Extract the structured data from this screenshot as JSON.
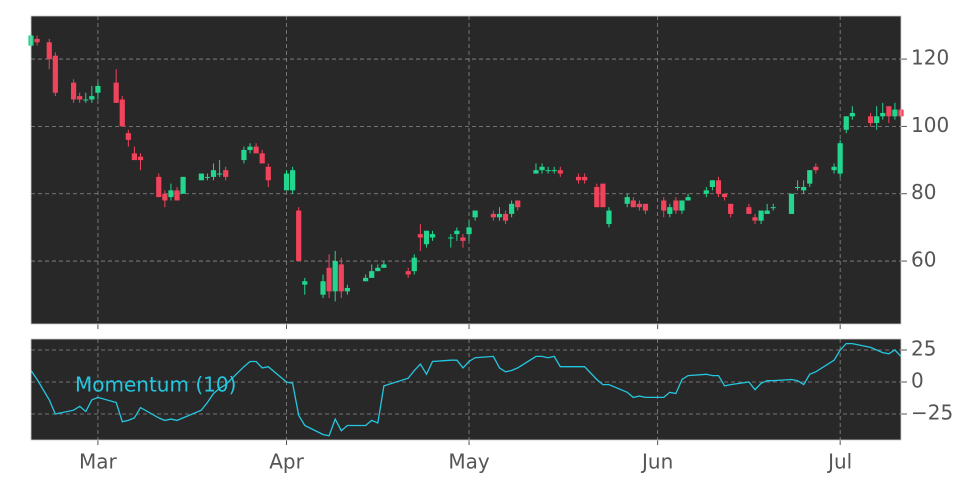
{
  "chart_data": [
    {
      "type": "candlestick",
      "up_color": "#22d68e",
      "down_color": "#f0435c",
      "grid": true,
      "xlim": [
        0,
        143
      ],
      "ylim": [
        41.3,
        132.8
      ],
      "yticks": [
        60,
        80,
        100,
        120
      ],
      "x": [
        0,
        1,
        3,
        4,
        7,
        8,
        9,
        10,
        11,
        14,
        15,
        16,
        17,
        18,
        21,
        22,
        23,
        24,
        25,
        28,
        29,
        30,
        31,
        32,
        35,
        36,
        37,
        38,
        39,
        42,
        43,
        44,
        45,
        48,
        49,
        50,
        51,
        52,
        55,
        56,
        57,
        58,
        62,
        63,
        64,
        65,
        66,
        69,
        70,
        71,
        72,
        73,
        76,
        77,
        78,
        79,
        80,
        83,
        84,
        85,
        86,
        87,
        90,
        91,
        93,
        94,
        95,
        98,
        99,
        100,
        101,
        104,
        105,
        106,
        107,
        108,
        111,
        112,
        113,
        114,
        115,
        118,
        119,
        120,
        121,
        122,
        125,
        126,
        127,
        128,
        129,
        132,
        133,
        134,
        135,
        138,
        139,
        140,
        141,
        142,
        143
      ],
      "open": [
        124,
        126,
        125,
        121,
        113,
        109,
        108,
        108,
        110,
        113,
        108,
        98,
        92,
        91,
        85,
        80,
        79,
        81,
        80,
        84,
        85,
        85,
        86,
        87,
        90,
        93,
        94,
        92,
        88,
        81,
        81,
        75,
        53,
        50,
        58,
        51,
        59,
        51,
        54,
        55,
        57,
        58,
        57,
        57,
        68,
        65,
        67,
        67,
        68,
        67,
        68,
        73,
        74,
        73,
        74,
        74,
        78,
        86,
        87,
        87,
        87,
        87,
        85,
        85,
        82,
        83,
        71,
        77,
        78,
        77,
        77,
        78,
        74,
        78,
        75,
        78,
        80,
        82,
        84,
        80,
        77,
        76,
        73,
        72,
        74,
        76,
        74,
        82,
        81,
        83,
        88,
        87,
        86,
        99,
        103,
        103,
        101,
        103,
        106,
        103,
        105
      ],
      "high": [
        128,
        127,
        126,
        122,
        114,
        110,
        110,
        112,
        113,
        117,
        109,
        99,
        94,
        92,
        86,
        81,
        83,
        82,
        85,
        86,
        86,
        89,
        90,
        88,
        94,
        95,
        95,
        93,
        89,
        87,
        88,
        76,
        55,
        56,
        62,
        63,
        61,
        53,
        56,
        59,
        59,
        60,
        58,
        62,
        71,
        69,
        69,
        68,
        70,
        68,
        72,
        75,
        75,
        76,
        75,
        78,
        78,
        89,
        89,
        88,
        88,
        88,
        86,
        86,
        83,
        83,
        76,
        80,
        79,
        78,
        77,
        79,
        77,
        79,
        78,
        80,
        82,
        84,
        85,
        80,
        77,
        77,
        74,
        75,
        77,
        77,
        80,
        84,
        84,
        87,
        89,
        89,
        96,
        103,
        106,
        104,
        106,
        107,
        106,
        107,
        106
      ],
      "low": [
        123,
        124,
        117,
        109,
        107,
        107,
        107,
        107,
        108,
        107,
        100,
        94,
        90,
        87,
        79,
        76,
        78,
        78,
        80,
        84,
        84,
        84,
        85,
        84,
        89,
        92,
        92,
        89,
        82,
        81,
        80,
        60,
        50,
        49,
        49,
        48,
        49,
        50,
        54,
        55,
        57,
        58,
        55,
        56,
        63,
        64,
        66,
        64,
        66,
        64,
        66,
        72,
        72,
        72,
        71,
        73,
        75,
        86,
        86,
        86,
        86,
        85,
        83,
        83,
        76,
        76,
        70,
        76,
        76,
        75,
        74,
        73,
        73,
        74,
        74,
        78,
        79,
        81,
        79,
        78,
        73,
        74,
        71,
        71,
        74,
        75,
        74,
        81,
        80,
        82,
        86,
        86,
        85,
        98,
        102,
        100,
        99,
        102,
        101,
        102,
        102
      ],
      "close": [
        127,
        125,
        120,
        110,
        108,
        108,
        108,
        109,
        112,
        107,
        100,
        96,
        90,
        90,
        79,
        78,
        81,
        78,
        85,
        86,
        85,
        87,
        86,
        85,
        93,
        94,
        92,
        89,
        84,
        86,
        87,
        60,
        54,
        54,
        51,
        60,
        51,
        52,
        55,
        57,
        58,
        59,
        56,
        61,
        67,
        69,
        68,
        67,
        69,
        66,
        70,
        75,
        73,
        74,
        72,
        77,
        76,
        87,
        88,
        87,
        87,
        86,
        84,
        84,
        76,
        76,
        75,
        79,
        76,
        76,
        75,
        75,
        76,
        75,
        78,
        79,
        81,
        84,
        80,
        79,
        74,
        74,
        72,
        75,
        75,
        76,
        80,
        82,
        82,
        87,
        87,
        88,
        95,
        103,
        104,
        101,
        103,
        104,
        103,
        105,
        103
      ]
    },
    {
      "type": "line",
      "grid": true,
      "xlim": [
        0,
        143
      ],
      "xticks": [
        {
          "value": 11,
          "label": "Mar"
        },
        {
          "value": 42,
          "label": "Apr"
        },
        {
          "value": 72,
          "label": "May"
        },
        {
          "value": 103,
          "label": "Jun"
        },
        {
          "value": 133,
          "label": "Jul"
        }
      ],
      "ylim": [
        -45.3,
        33.6
      ],
      "yticks": [
        {
          "value": -25,
          "label": "−25"
        },
        0,
        25
      ],
      "series": [
        {
          "name": "Momentum (10)",
          "color": "#25c6e0",
          "values": [
            9,
            2,
            -14,
            -25,
            -22,
            -19,
            -23,
            -14,
            -12,
            -16,
            -31,
            -30,
            -28,
            -20,
            -28,
            -30,
            -29,
            -30,
            -28,
            -22,
            -16,
            -9,
            -5,
            -2,
            12,
            16,
            16,
            11,
            12,
            0,
            -1,
            -26,
            -34,
            -41,
            -42,
            -29,
            -38,
            -34,
            -34,
            -30,
            -32,
            -3,
            3,
            9,
            14,
            6,
            16,
            17,
            17,
            11,
            16,
            19,
            20,
            11,
            8,
            9,
            11,
            20,
            20,
            19,
            20,
            12,
            12,
            12,
            2,
            -2,
            -2,
            -8,
            -12,
            -11,
            -12,
            -12,
            -8,
            -9,
            2,
            5,
            6,
            5,
            5,
            -3,
            -2,
            0,
            -6,
            -1,
            1,
            1,
            2,
            1,
            -2,
            6,
            8,
            17,
            25,
            30,
            30,
            27,
            25,
            23,
            22,
            25,
            20
          ]
        }
      ]
    }
  ]
}
